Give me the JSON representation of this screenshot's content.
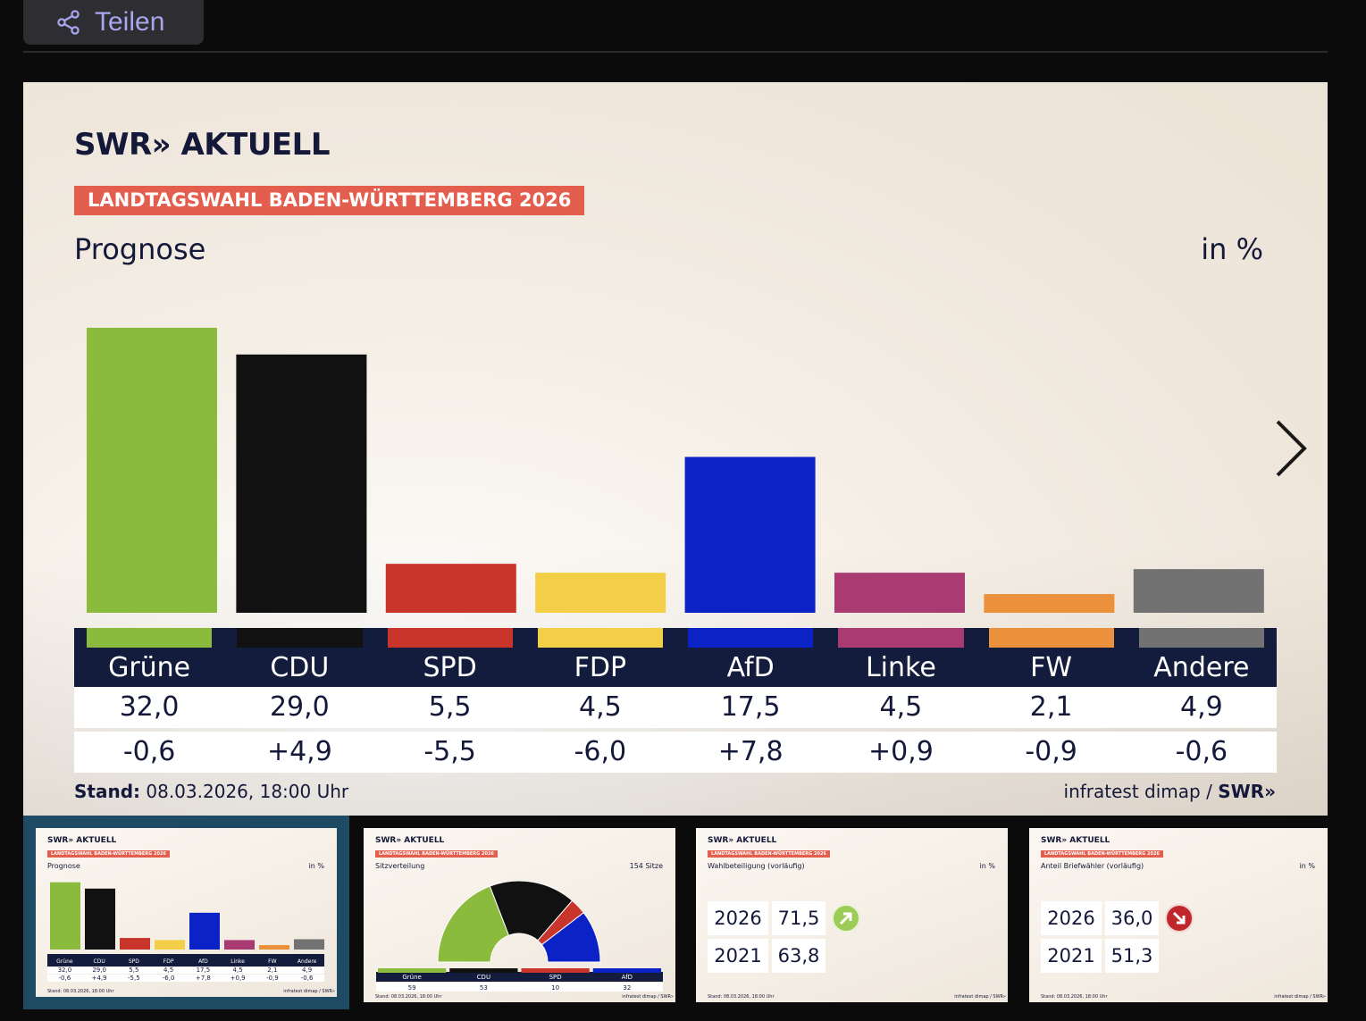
{
  "share": {
    "label": "Teilen"
  },
  "slide": {
    "logo": "SWR» AKTUELL",
    "badge": "LANDTAGSWAHL BADEN-WÜRTTEMBERG 2026",
    "subtitle": "Prognose",
    "unit": "in %",
    "footer_stand_label": "Stand:",
    "footer_stand_value": "08.03.2026, 18:00 Uhr",
    "footer_source": "infratest dimap /",
    "footer_brand": "SWR»"
  },
  "chart_data": {
    "type": "bar",
    "title": "Prognose",
    "ylabel": "in %",
    "ylim": [
      0,
      34
    ],
    "categories": [
      "Grüne",
      "CDU",
      "SPD",
      "FDP",
      "AfD",
      "Linke",
      "FW",
      "Andere"
    ],
    "values": [
      32.0,
      29.0,
      5.5,
      4.5,
      17.5,
      4.5,
      2.1,
      4.9
    ],
    "values_text": [
      "32,0",
      "29,0",
      "5,5",
      "4,5",
      "17,5",
      "4,5",
      "2,1",
      "4,9"
    ],
    "changes_text": [
      "-0,6",
      "+4,9",
      "-5,5",
      "-6,0",
      "+7,8",
      "+0,9",
      "-0,9",
      "-0,6"
    ],
    "colors": [
      "#8bbb3d",
      "#111111",
      "#c9342b",
      "#f3cf47",
      "#0b22c6",
      "#a93a72",
      "#ec913b",
      "#727272"
    ]
  },
  "thumbnails": [
    {
      "id": "prognose",
      "logo": "SWR» AKTUELL",
      "badge": "LANDTAGSWAHL BADEN-WÜRTTEMBERG 2026",
      "subtitle": "Prognose",
      "unit": "in %",
      "values_text": [
        "32,0",
        "29,0",
        "5,5",
        "4,5",
        "17,5",
        "4,5",
        "2,1",
        "4,9"
      ],
      "changes_text": [
        "-0,6",
        "+4,9",
        "-5,5",
        "-6,0",
        "+7,8",
        "+0,9",
        "-0,9",
        "-0,6"
      ],
      "footer": "Stand: 08.03.2026, 18:00 Uhr",
      "footer_r": "infratest dimap / SWR»"
    },
    {
      "id": "sitzverteilung",
      "logo": "SWR» AKTUELL",
      "badge": "LANDTAGSWAHL BADEN-WÜRTTEMBERG 2026",
      "subtitle": "Sitzverteilung",
      "unit": "154 Sitze",
      "parties": [
        "Grüne",
        "CDU",
        "SPD",
        "AfD"
      ],
      "seats": [
        59,
        53,
        10,
        32
      ],
      "seats_text": [
        "59",
        "53",
        "10",
        "32"
      ],
      "colors": [
        "#8bbb3d",
        "#111111",
        "#c9342b",
        "#0b22c6"
      ],
      "footer": "Stand: 08.03.2026, 18:00 Uhr",
      "footer_r": "infratest dimap / SWR»"
    },
    {
      "id": "wahlbeteiligung",
      "logo": "SWR» AKTUELL",
      "badge": "LANDTAGSWAHL BADEN-WÜRTTEMBERG 2026",
      "subtitle": "Wahlbeteiligung (vorläufig)",
      "unit": "in %",
      "year1": "2026",
      "value1": "71,5",
      "year2": "2021",
      "value2": "63,8",
      "footer": "Stand: 08.03.2026, 18:00 Uhr",
      "footer_r": "infratest dimap / SWR»"
    },
    {
      "id": "briefwaehler",
      "logo": "SWR» AKTUELL",
      "badge": "LANDTAGSWAHL BADEN-WÜRTTEMBERG 2026",
      "subtitle": "Anteil Briefwähler (vorläufig)",
      "unit": "in %",
      "year1": "2026",
      "value1": "36,0",
      "year2": "2021",
      "value2": "51,3",
      "footer": "Stand: 08.03.2026, 18:00 Uhr",
      "footer_r": "infratest dimap / SWR»"
    }
  ]
}
